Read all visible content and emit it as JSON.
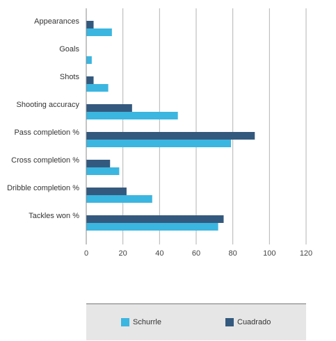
{
  "chart_data": {
    "type": "bar",
    "orientation": "horizontal",
    "categories": [
      "Appearances",
      "Goals",
      "Shots",
      "Shooting accuracy",
      "Pass completion %",
      "Cross completion %",
      "Dribble completion %",
      "Tackles won %"
    ],
    "series": [
      {
        "name": "Cuadrado",
        "color": "#34597e",
        "values": [
          4,
          0,
          4,
          25,
          92,
          13,
          22,
          75
        ]
      },
      {
        "name": "Schurrle",
        "color": "#3bb6e0",
        "values": [
          14,
          3,
          12,
          50,
          79,
          18,
          36,
          72
        ]
      }
    ],
    "xlim": [
      0,
      120
    ],
    "xticks": [
      "0",
      "20",
      "40",
      "60",
      "80",
      "100",
      "120"
    ],
    "grid": true,
    "legend_position": "bottom",
    "legend": [
      "Schurrle",
      "Cuadrado"
    ]
  }
}
